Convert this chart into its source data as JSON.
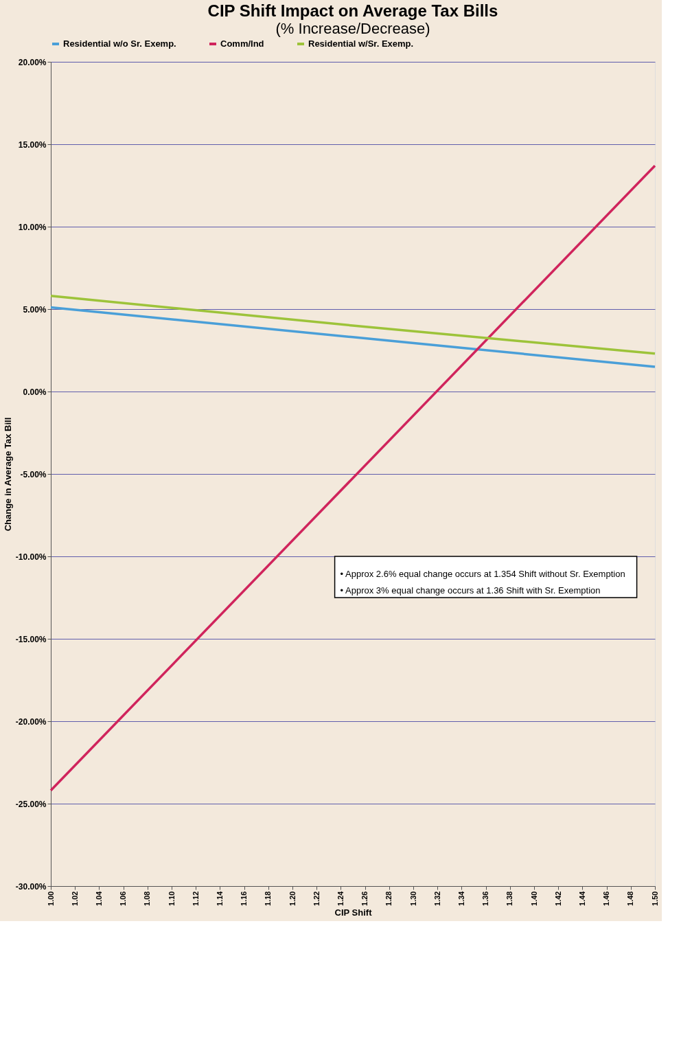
{
  "chart_data": {
    "type": "line",
    "title": "CIP Shift Impact on Average Tax Bills",
    "subtitle": "(% Increase/Decrease)",
    "xlabel": "CIP Shift",
    "ylabel": "Change in Average Tax Bill",
    "series": [
      {
        "name": "Residential w/o Sr. Exemp.",
        "color": "#4a9fd8",
        "x": [
          1.0,
          1.25,
          1.5
        ],
        "values": [
          5.1,
          3.3,
          1.5
        ]
      },
      {
        "name": "Comm/Ind",
        "color": "#d0245c",
        "x": [
          1.0,
          1.5
        ],
        "values": [
          -24.2,
          13.7
        ]
      },
      {
        "name": "Residential w/Sr. Exemp.",
        "color": "#9dc33a",
        "x": [
          1.0,
          1.25,
          1.5
        ],
        "values": [
          5.8,
          4.0,
          2.3
        ]
      }
    ],
    "xlim": [
      1.0,
      1.5
    ],
    "xticks": [
      {
        "value": 1.0,
        "label": "1.00"
      },
      {
        "value": 1.02,
        "label": "1.02"
      },
      {
        "value": 1.04,
        "label": "1.04"
      },
      {
        "value": 1.06,
        "label": "1.06"
      },
      {
        "value": 1.08,
        "label": "1.08"
      },
      {
        "value": 1.1,
        "label": "1.10"
      },
      {
        "value": 1.12,
        "label": "1.12"
      },
      {
        "value": 1.14,
        "label": "1.14"
      },
      {
        "value": 1.16,
        "label": "1.16"
      },
      {
        "value": 1.18,
        "label": "1.18"
      },
      {
        "value": 1.2,
        "label": "1.20"
      },
      {
        "value": 1.22,
        "label": "1.22"
      },
      {
        "value": 1.24,
        "label": "1.24"
      },
      {
        "value": 1.26,
        "label": "1.26"
      },
      {
        "value": 1.28,
        "label": "1.28"
      },
      {
        "value": 1.3,
        "label": "1.30"
      },
      {
        "value": 1.32,
        "label": "1.32"
      },
      {
        "value": 1.34,
        "label": "1.34"
      },
      {
        "value": 1.36,
        "label": "1.36"
      },
      {
        "value": 1.38,
        "label": "1.38"
      },
      {
        "value": 1.4,
        "label": "1.40"
      },
      {
        "value": 1.42,
        "label": "1.42"
      },
      {
        "value": 1.44,
        "label": "1.44"
      },
      {
        "value": 1.46,
        "label": "1.46"
      },
      {
        "value": 1.48,
        "label": "1.48"
      },
      {
        "value": 1.5,
        "label": "1.50"
      }
    ],
    "ylim": [
      -30,
      20
    ],
    "yticks": [
      {
        "value": -30,
        "label": "-30.00%"
      },
      {
        "value": -25,
        "label": "-25.00%"
      },
      {
        "value": -20,
        "label": "-20.00%"
      },
      {
        "value": -15,
        "label": "-15.00%"
      },
      {
        "value": -10,
        "label": "-10.00%"
      },
      {
        "value": -5,
        "label": "-5.00%"
      },
      {
        "value": 0,
        "label": "0.00%"
      },
      {
        "value": 5,
        "label": "5.00%"
      },
      {
        "value": 10,
        "label": "10.00%"
      },
      {
        "value": 15,
        "label": "15.00%"
      },
      {
        "value": 20,
        "label": "20.00%"
      }
    ],
    "annotations": [
      "• Approx 2.6% equal change occurs at 1.354 Shift without Sr. Exemption",
      "• Approx 3% equal change occurs at 1.36 Shift with Sr. Exemption"
    ],
    "grid": "y",
    "legend": "top",
    "marker": "none",
    "line_style": "solid"
  }
}
